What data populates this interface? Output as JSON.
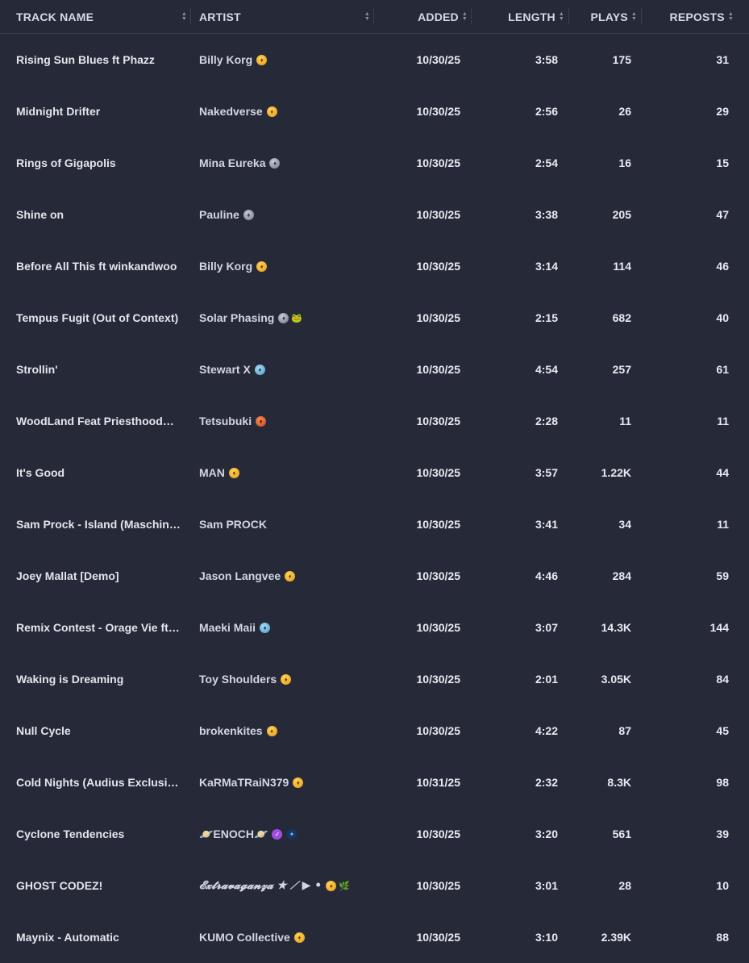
{
  "header": {
    "track_name": "TRACK NAME",
    "artist": "ARTIST",
    "added": "ADDED",
    "length": "LENGTH",
    "plays": "PLAYS",
    "reposts": "REPOSTS"
  },
  "rows": [
    {
      "name": "Rising Sun Blues ft Phazz",
      "artist": "Billy Korg",
      "badge": "gold",
      "added": "10/30/25",
      "length": "3:58",
      "plays": "175",
      "reposts": "31"
    },
    {
      "name": "Midnight Drifter",
      "artist": "Nakedverse",
      "badge": "gold",
      "added": "10/30/25",
      "length": "2:56",
      "plays": "26",
      "reposts": "29"
    },
    {
      "name": "Rings of Gigapolis",
      "artist": "Mina Eureka",
      "badge": "silver",
      "added": "10/30/25",
      "length": "2:54",
      "plays": "16",
      "reposts": "15"
    },
    {
      "name": "Shine on",
      "artist": "Pauline",
      "badge": "silver",
      "added": "10/30/25",
      "length": "3:38",
      "plays": "205",
      "reposts": "47"
    },
    {
      "name": "Before All This ft winkandwoo",
      "artist": "Billy Korg",
      "badge": "gold",
      "added": "10/30/25",
      "length": "3:14",
      "plays": "114",
      "reposts": "46"
    },
    {
      "name": "Tempus Fugit (Out of Context)",
      "artist": "Solar Phasing",
      "badge": "silver",
      "extra": "🐸",
      "added": "10/30/25",
      "length": "2:15",
      "plays": "682",
      "reposts": "40"
    },
    {
      "name": "Strollin'",
      "artist": "Stewart X",
      "badge": "blue",
      "added": "10/30/25",
      "length": "4:54",
      "plays": "257",
      "reposts": "61"
    },
    {
      "name": "WoodLand Feat PriesthoodOfGod",
      "artist": "Tetsubuki",
      "badge": "bronze",
      "added": "10/30/25",
      "length": "2:28",
      "plays": "11",
      "reposts": "11"
    },
    {
      "name": "It's Good",
      "artist": "MAN",
      "badge": "gold",
      "added": "10/30/25",
      "length": "3:57",
      "plays": "1.22K",
      "reposts": "44"
    },
    {
      "name": "Sam Prock - Island (Maschine Remix)",
      "artist": "Sam PROCK",
      "badge": "",
      "added": "10/30/25",
      "length": "3:41",
      "plays": "34",
      "reposts": "11"
    },
    {
      "name": "Joey Mallat [Demo]",
      "artist": "Jason Langvee",
      "badge": "gold",
      "added": "10/30/25",
      "length": "4:46",
      "plays": "284",
      "reposts": "59"
    },
    {
      "name": "Remix Contest - Orage Vie ft Luna",
      "artist": "Maeki Maii",
      "badge": "blue",
      "added": "10/30/25",
      "length": "3:07",
      "plays": "14.3K",
      "reposts": "144"
    },
    {
      "name": "Waking is Dreaming",
      "artist": "Toy Shoulders",
      "badge": "gold",
      "added": "10/30/25",
      "length": "2:01",
      "plays": "3.05K",
      "reposts": "84"
    },
    {
      "name": "Null Cycle",
      "artist": "brokenkites",
      "badge": "gold",
      "added": "10/30/25",
      "length": "4:22",
      "plays": "87",
      "reposts": "45"
    },
    {
      "name": "Cold Nights (Audius Exclusive)",
      "artist": "KaRMaTRaiN379",
      "badge": "gold",
      "added": "10/31/25",
      "length": "2:32",
      "plays": "8.3K",
      "reposts": "98"
    },
    {
      "name": "Cyclone Tendencies",
      "artist": "🪐ENOCH🪐",
      "badge": "purple",
      "badge2": "star",
      "added": "10/30/25",
      "length": "3:20",
      "plays": "561",
      "reposts": "39"
    },
    {
      "name": "GHOST CODEZ!",
      "artist": "𝓔𝔁𝓽𝓻𝓪𝓿𝓪𝓰𝓪𝓷𝔃𝓪 ★ ⟋ ▶ •",
      "badge": "gold",
      "extra": "🌿",
      "script": true,
      "added": "10/30/25",
      "length": "3:01",
      "plays": "28",
      "reposts": "10"
    },
    {
      "name": "Maynix - Automatic",
      "artist": "KUMO Collective",
      "badge": "gold",
      "added": "10/30/25",
      "length": "3:10",
      "plays": "2.39K",
      "reposts": "88"
    }
  ]
}
